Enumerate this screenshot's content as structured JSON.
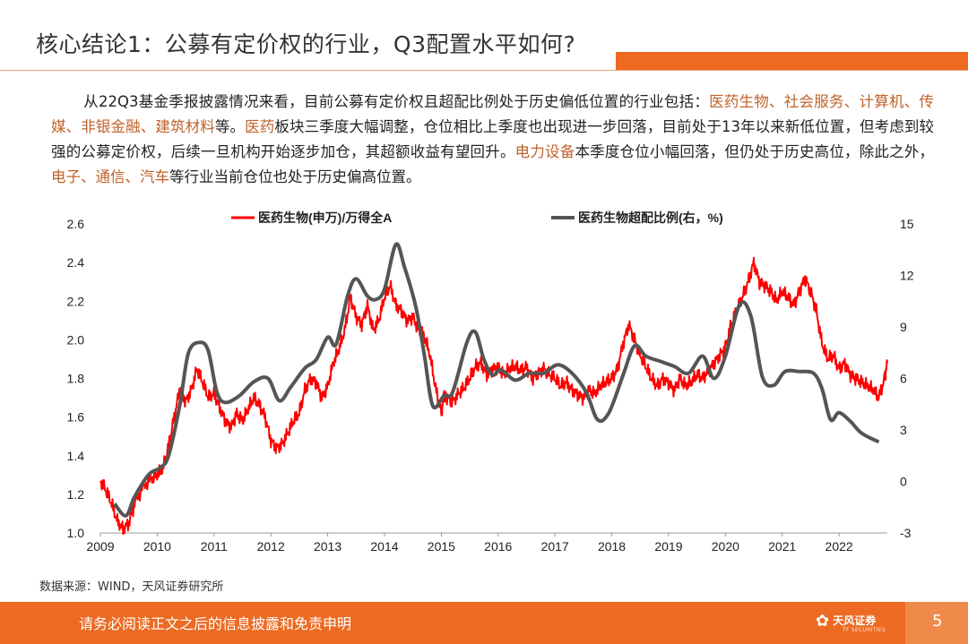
{
  "page": {
    "title": "核心结论1：公募有定价权的行业，Q3配置水平如何?",
    "paragraph": [
      {
        "t": "从22Q3基金季报披露情况来看，目前公募有定价权且超配比例处于历史偏低位置的行业包括：",
        "h": false
      },
      {
        "t": "医药生物、社会服务、计算机、传媒、非银金融、建筑材料",
        "h": true
      },
      {
        "t": "等。",
        "h": false
      },
      {
        "t": "医药",
        "h": true
      },
      {
        "t": "板块三季度大幅调整，仓位相比上季度也出现进一步回落，目前处于13年以来新低位置，但考虑到较强的公募定价权，后续一旦机构开始逐步加仓，其超额收益有望回升。",
        "h": false
      },
      {
        "t": "电力设备",
        "h": true
      },
      {
        "t": "本季度仓位小幅回落，但仍处于历史高位，除此之外，",
        "h": false
      },
      {
        "t": "电子、通信、汽车",
        "h": true
      },
      {
        "t": "等行业当前仓位也处于历史偏高位置。",
        "h": false
      }
    ],
    "source": "数据来源：WIND，天风证券研究所",
    "footer_text": "请务必阅读正文之后的信息披露和免责申明",
    "logo_text": "天风证券",
    "logo_sub": "TF SECURITIES",
    "page_number": "5",
    "colors": {
      "accent": "#ec6a22",
      "highlight": "#c0622a",
      "series_red": "#ff0000",
      "series_gray": "#555555"
    }
  },
  "chart_data": {
    "type": "line",
    "x_ticks": [
      "2009",
      "2010",
      "2011",
      "2012",
      "2013",
      "2014",
      "2015",
      "2016",
      "2017",
      "2018",
      "2019",
      "2020",
      "2021",
      "2022"
    ],
    "xlim": [
      2009.0,
      2022.85
    ],
    "y_left": {
      "ticks": [
        "1.0",
        "1.2",
        "1.4",
        "1.6",
        "1.8",
        "2.0",
        "2.2",
        "2.4",
        "2.6"
      ],
      "ylim": [
        1.0,
        2.6
      ]
    },
    "y_right": {
      "ticks": [
        "-3",
        "0",
        "3",
        "6",
        "9",
        "12",
        "15"
      ],
      "ylim": [
        -3,
        15
      ]
    },
    "legend": [
      "医药生物(申万)/万得全A",
      "医药生物超配比例(右，%)"
    ],
    "series": [
      {
        "name": "医药生物(申万)/万得全A",
        "axis": "left",
        "color": "#ff0000",
        "points": [
          [
            2009.0,
            1.27
          ],
          [
            2009.1,
            1.22
          ],
          [
            2009.2,
            1.15
          ],
          [
            2009.3,
            1.06
          ],
          [
            2009.4,
            1.02
          ],
          [
            2009.5,
            1.05
          ],
          [
            2009.6,
            1.15
          ],
          [
            2009.75,
            1.24
          ],
          [
            2009.9,
            1.28
          ],
          [
            2010.0,
            1.3
          ],
          [
            2010.1,
            1.33
          ],
          [
            2010.2,
            1.45
          ],
          [
            2010.3,
            1.6
          ],
          [
            2010.4,
            1.75
          ],
          [
            2010.5,
            1.68
          ],
          [
            2010.6,
            1.74
          ],
          [
            2010.7,
            1.85
          ],
          [
            2010.8,
            1.78
          ],
          [
            2010.9,
            1.7
          ],
          [
            2011.0,
            1.72
          ],
          [
            2011.1,
            1.65
          ],
          [
            2011.2,
            1.58
          ],
          [
            2011.3,
            1.55
          ],
          [
            2011.4,
            1.62
          ],
          [
            2011.5,
            1.58
          ],
          [
            2011.6,
            1.64
          ],
          [
            2011.7,
            1.7
          ],
          [
            2011.8,
            1.66
          ],
          [
            2011.9,
            1.6
          ],
          [
            2012.0,
            1.48
          ],
          [
            2012.1,
            1.44
          ],
          [
            2012.2,
            1.46
          ],
          [
            2012.3,
            1.52
          ],
          [
            2012.4,
            1.58
          ],
          [
            2012.5,
            1.62
          ],
          [
            2012.6,
            1.74
          ],
          [
            2012.7,
            1.8
          ],
          [
            2012.8,
            1.78
          ],
          [
            2012.9,
            1.7
          ],
          [
            2013.0,
            1.76
          ],
          [
            2013.1,
            1.88
          ],
          [
            2013.2,
            1.95
          ],
          [
            2013.3,
            2.05
          ],
          [
            2013.4,
            2.22
          ],
          [
            2013.5,
            2.12
          ],
          [
            2013.6,
            2.08
          ],
          [
            2013.7,
            2.18
          ],
          [
            2013.8,
            2.05
          ],
          [
            2013.9,
            2.1
          ],
          [
            2014.0,
            2.22
          ],
          [
            2014.1,
            2.28
          ],
          [
            2014.2,
            2.18
          ],
          [
            2014.3,
            2.15
          ],
          [
            2014.4,
            2.1
          ],
          [
            2014.5,
            2.12
          ],
          [
            2014.6,
            2.05
          ],
          [
            2014.7,
            2.02
          ],
          [
            2014.8,
            1.92
          ],
          [
            2014.9,
            1.75
          ],
          [
            2015.0,
            1.62
          ],
          [
            2015.05,
            1.72
          ],
          [
            2015.1,
            1.7
          ],
          [
            2015.2,
            1.68
          ],
          [
            2015.3,
            1.72
          ],
          [
            2015.4,
            1.75
          ],
          [
            2015.5,
            1.8
          ],
          [
            2015.6,
            1.86
          ],
          [
            2015.7,
            1.88
          ],
          [
            2015.8,
            1.82
          ],
          [
            2015.9,
            1.85
          ],
          [
            2016.0,
            1.86
          ],
          [
            2016.1,
            1.82
          ],
          [
            2016.2,
            1.85
          ],
          [
            2016.3,
            1.86
          ],
          [
            2016.4,
            1.84
          ],
          [
            2016.5,
            1.86
          ],
          [
            2016.6,
            1.8
          ],
          [
            2016.7,
            1.83
          ],
          [
            2016.8,
            1.85
          ],
          [
            2016.9,
            1.82
          ],
          [
            2017.0,
            1.8
          ],
          [
            2017.1,
            1.76
          ],
          [
            2017.2,
            1.78
          ],
          [
            2017.3,
            1.74
          ],
          [
            2017.4,
            1.72
          ],
          [
            2017.5,
            1.7
          ],
          [
            2017.6,
            1.74
          ],
          [
            2017.7,
            1.72
          ],
          [
            2017.8,
            1.76
          ],
          [
            2017.9,
            1.78
          ],
          [
            2018.0,
            1.8
          ],
          [
            2018.1,
            1.85
          ],
          [
            2018.2,
            1.98
          ],
          [
            2018.3,
            2.08
          ],
          [
            2018.4,
            2.0
          ],
          [
            2018.5,
            1.92
          ],
          [
            2018.6,
            1.86
          ],
          [
            2018.7,
            1.8
          ],
          [
            2018.8,
            1.76
          ],
          [
            2018.9,
            1.8
          ],
          [
            2019.0,
            1.78
          ],
          [
            2019.1,
            1.74
          ],
          [
            2019.2,
            1.8
          ],
          [
            2019.3,
            1.76
          ],
          [
            2019.4,
            1.78
          ],
          [
            2019.5,
            1.82
          ],
          [
            2019.6,
            1.8
          ],
          [
            2019.7,
            1.84
          ],
          [
            2019.8,
            1.88
          ],
          [
            2019.9,
            1.92
          ],
          [
            2020.0,
            1.96
          ],
          [
            2020.1,
            2.08
          ],
          [
            2020.2,
            2.15
          ],
          [
            2020.3,
            2.22
          ],
          [
            2020.4,
            2.3
          ],
          [
            2020.5,
            2.4
          ],
          [
            2020.6,
            2.3
          ],
          [
            2020.7,
            2.28
          ],
          [
            2020.8,
            2.25
          ],
          [
            2020.9,
            2.2
          ],
          [
            2021.0,
            2.25
          ],
          [
            2021.1,
            2.22
          ],
          [
            2021.2,
            2.18
          ],
          [
            2021.3,
            2.25
          ],
          [
            2021.4,
            2.32
          ],
          [
            2021.5,
            2.25
          ],
          [
            2021.6,
            2.15
          ],
          [
            2021.7,
            1.98
          ],
          [
            2021.8,
            1.9
          ],
          [
            2021.9,
            1.92
          ],
          [
            2022.0,
            1.85
          ],
          [
            2022.1,
            1.88
          ],
          [
            2022.2,
            1.82
          ],
          [
            2022.3,
            1.8
          ],
          [
            2022.4,
            1.78
          ],
          [
            2022.5,
            1.76
          ],
          [
            2022.6,
            1.74
          ],
          [
            2022.7,
            1.7
          ],
          [
            2022.8,
            1.8
          ],
          [
            2022.85,
            1.88
          ]
        ]
      },
      {
        "name": "医药生物超配比例(右，%)",
        "axis": "right",
        "color": "#555555",
        "points": [
          [
            2009.25,
            -1.3
          ],
          [
            2009.45,
            -2.0
          ],
          [
            2009.6,
            -0.9
          ],
          [
            2009.85,
            0.4
          ],
          [
            2010.05,
            0.8
          ],
          [
            2010.2,
            1.5
          ],
          [
            2010.4,
            4.5
          ],
          [
            2010.55,
            7.5
          ],
          [
            2010.75,
            8.1
          ],
          [
            2010.9,
            7.6
          ],
          [
            2011.05,
            5.2
          ],
          [
            2011.2,
            4.6
          ],
          [
            2011.45,
            5.0
          ],
          [
            2011.7,
            5.8
          ],
          [
            2011.95,
            6.0
          ],
          [
            2012.15,
            4.7
          ],
          [
            2012.35,
            5.5
          ],
          [
            2012.6,
            6.6
          ],
          [
            2012.8,
            7.1
          ],
          [
            2013.0,
            8.4
          ],
          [
            2013.15,
            8.0
          ],
          [
            2013.35,
            10.8
          ],
          [
            2013.5,
            11.8
          ],
          [
            2013.7,
            10.8
          ],
          [
            2013.85,
            10.6
          ],
          [
            2014.0,
            11.2
          ],
          [
            2014.2,
            13.8
          ],
          [
            2014.35,
            12.5
          ],
          [
            2014.55,
            10.2
          ],
          [
            2014.7,
            7.4
          ],
          [
            2014.85,
            4.4
          ],
          [
            2015.05,
            5.0
          ],
          [
            2015.2,
            5.2
          ],
          [
            2015.45,
            8.1
          ],
          [
            2015.6,
            8.7
          ],
          [
            2015.75,
            7.1
          ],
          [
            2015.9,
            6.2
          ],
          [
            2016.05,
            6.5
          ],
          [
            2016.3,
            5.9
          ],
          [
            2016.55,
            6.3
          ],
          [
            2016.8,
            6.3
          ],
          [
            2017.05,
            6.8
          ],
          [
            2017.3,
            6.3
          ],
          [
            2017.55,
            5.2
          ],
          [
            2017.75,
            3.6
          ],
          [
            2017.95,
            4.0
          ],
          [
            2018.2,
            6.2
          ],
          [
            2018.4,
            7.9
          ],
          [
            2018.6,
            7.3
          ],
          [
            2018.85,
            7.0
          ],
          [
            2019.1,
            6.7
          ],
          [
            2019.35,
            6.3
          ],
          [
            2019.6,
            7.3
          ],
          [
            2019.8,
            6.0
          ],
          [
            2020.0,
            7.3
          ],
          [
            2020.25,
            10.3
          ],
          [
            2020.45,
            9.6
          ],
          [
            2020.65,
            6.1
          ],
          [
            2020.85,
            5.6
          ],
          [
            2021.05,
            6.4
          ],
          [
            2021.3,
            6.4
          ],
          [
            2021.55,
            6.3
          ],
          [
            2021.7,
            5.4
          ],
          [
            2021.85,
            3.6
          ],
          [
            2022.0,
            4.0
          ],
          [
            2022.2,
            3.5
          ],
          [
            2022.4,
            2.8
          ],
          [
            2022.7,
            2.3
          ]
        ]
      }
    ]
  }
}
